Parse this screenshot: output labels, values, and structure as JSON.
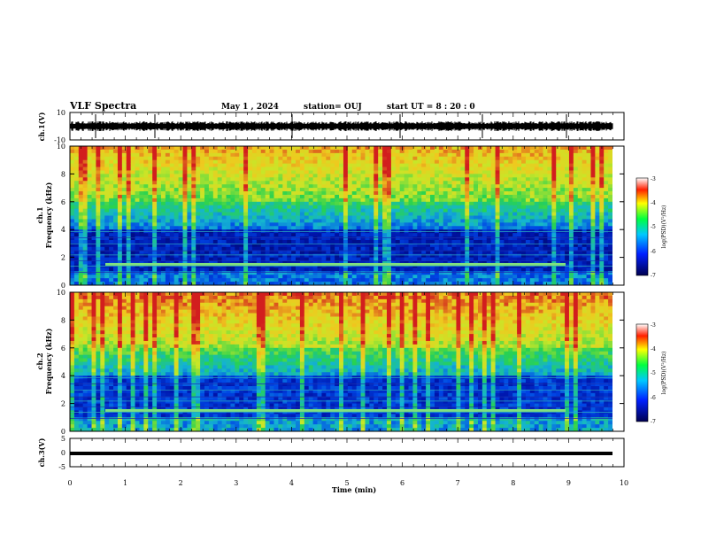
{
  "header": {
    "title": "VLF Spectra",
    "date": "May 1 , 2024",
    "station": "station= OUJ",
    "start_time": "start  UT  =   8  : 20 : 0"
  },
  "chart_data": [
    {
      "type": "line",
      "id": "ch1_waveform",
      "ylabel": "ch.1(V)",
      "ylim": [
        -10,
        10
      ],
      "yticks": [
        "10",
        "-10"
      ],
      "xlim": [
        0,
        10
      ],
      "series": [
        {
          "values_description_level": 0.0,
          "amplitude": 1.2
        }
      ]
    },
    {
      "type": "heatmap",
      "id": "ch1_spectrogram",
      "ylabel": "ch.1\nFrequency (kHz)",
      "ylim": [
        0,
        10
      ],
      "yticks": [
        "0",
        "2",
        "4",
        "6",
        "8",
        "10"
      ],
      "xlim": [
        0,
        10
      ],
      "colorbar": {
        "label": "log(PSD)(V²/Hz)",
        "range": [
          -7,
          -3
        ],
        "ticks": [
          "-3",
          "-4",
          "-5",
          "-6",
          "-7"
        ]
      }
    },
    {
      "type": "heatmap",
      "id": "ch2_spectrogram",
      "ylabel": "ch.2\nFrequency (kHz)",
      "ylim": [
        0,
        10
      ],
      "yticks": [
        "0",
        "2",
        "4",
        "6",
        "8",
        "10"
      ],
      "xlim": [
        0,
        10
      ],
      "colorbar": {
        "label": "log(PSD)(V²/Hz)",
        "range": [
          -7,
          -3
        ],
        "ticks": [
          "-3",
          "-4",
          "-5",
          "-6",
          "-7"
        ]
      }
    },
    {
      "type": "line",
      "id": "ch3_waveform",
      "ylabel": "ch.3(V)",
      "ylim": [
        -5,
        5
      ],
      "yticks": [
        "5",
        "0",
        "-5"
      ],
      "xlim": [
        0,
        10
      ],
      "series": [
        {
          "level": -0.2
        }
      ]
    }
  ],
  "xaxis": {
    "label": "Time  (min)",
    "ticks": [
      "0",
      "1",
      "2",
      "3",
      "4",
      "5",
      "6",
      "7",
      "8",
      "9",
      "10"
    ]
  },
  "colors": {
    "deep": "#000040",
    "blue": "#0a1ea8",
    "cyan": "#1fb5d0",
    "green": "#3cd23c",
    "yellow": "#e6e632",
    "red": "#d21e1e"
  }
}
